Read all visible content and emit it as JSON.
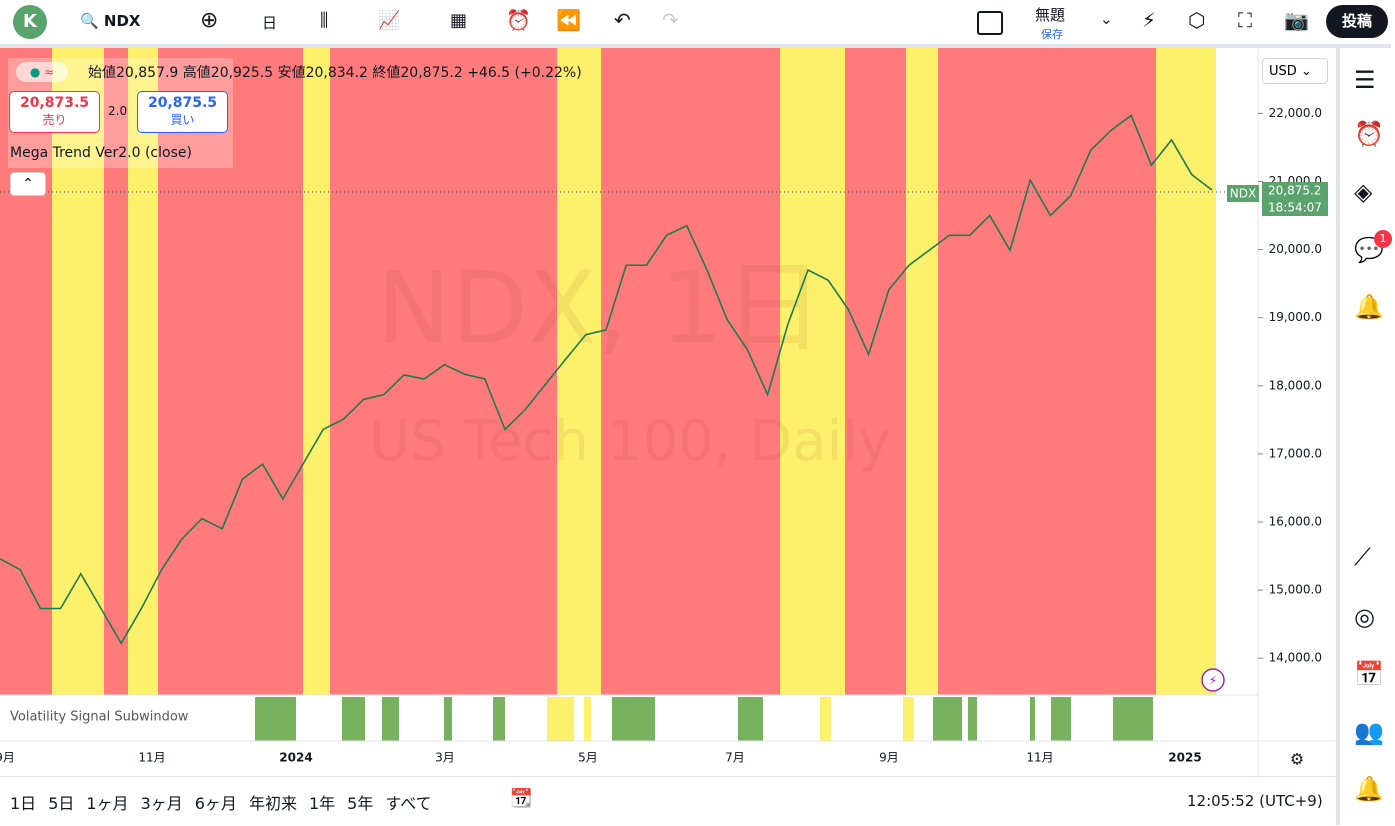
{
  "header": {
    "avatar": "K",
    "symbol": "NDX",
    "interval": "日",
    "layout_name": "無題",
    "save": "保存",
    "publish": "投稿"
  },
  "legend": {
    "open_label": "始値",
    "open": "20,857.9",
    "high_label": "高値",
    "high": "20,925.5",
    "low_label": "安値",
    "low": "20,834.2",
    "close_label": "終値",
    "close": "20,875.2",
    "change": "+46.5 (+0.22%)",
    "sell_price": "20,873.5",
    "sell": "売り",
    "spread": "2.0",
    "buy_price": "20,875.5",
    "buy": "買い",
    "indicator": "Mega Trend Ver2.0 (close)"
  },
  "watermark": {
    "line1": "NDX, 1日",
    "line2": "US Tech 100, Daily"
  },
  "subwindow": {
    "label": "Volatility Signal Subwindow"
  },
  "currency": "USD",
  "price_tag": {
    "symbol": "NDX",
    "price": "20,875.2",
    "countdown": "18:54:07"
  },
  "notification_badge": "1",
  "chart_data": {
    "type": "line",
    "color": "#1f7a4f",
    "values": [
      15460,
      15300,
      14730,
      14730,
      15240,
      14730,
      14220,
      14730,
      15300,
      15750,
      16050,
      15900,
      16630,
      16850,
      16340,
      16850,
      17360,
      17510,
      17800,
      17870,
      18160,
      18100,
      18310,
      18170,
      18100,
      17360,
      17650,
      18020,
      18390,
      18750,
      18820,
      19770,
      19770,
      20210,
      20350,
      19700,
      18970,
      18530,
      17870,
      18900,
      19700,
      19550,
      19120,
      18460,
      19410,
      19770,
      19990,
      20210,
      20210,
      20500,
      19990,
      21020,
      20500,
      20790,
      21460,
      21750,
      21970,
      21240,
      21610,
      21100,
      20875
    ],
    "ylim": [
      13460,
      22960
    ],
    "yticks": [
      {
        "value": 14000,
        "label": "14,000.0"
      },
      {
        "value": 15000,
        "label": "15,000.0"
      },
      {
        "value": 16000,
        "label": "16,000.0"
      },
      {
        "value": 17000,
        "label": "17,000.0"
      },
      {
        "value": 18000,
        "label": "18,000.0"
      },
      {
        "value": 19000,
        "label": "19,000.0"
      },
      {
        "value": 20000,
        "label": "20,000.0"
      },
      {
        "value": 21000,
        "label": "21,000.0"
      },
      {
        "value": 22000,
        "label": "22,000.0"
      }
    ],
    "x_labels": [
      "9月",
      "11月",
      "2024",
      "3月",
      "5月",
      "7月",
      "9月",
      "11月",
      "2025"
    ]
  },
  "range_buttons": [
    "1日",
    "5日",
    "1ヶ月",
    "3ヶ月",
    "6ヶ月",
    "年初来",
    "1年",
    "5年",
    "すべて"
  ],
  "clock": "12:05:52 (UTC+9)"
}
